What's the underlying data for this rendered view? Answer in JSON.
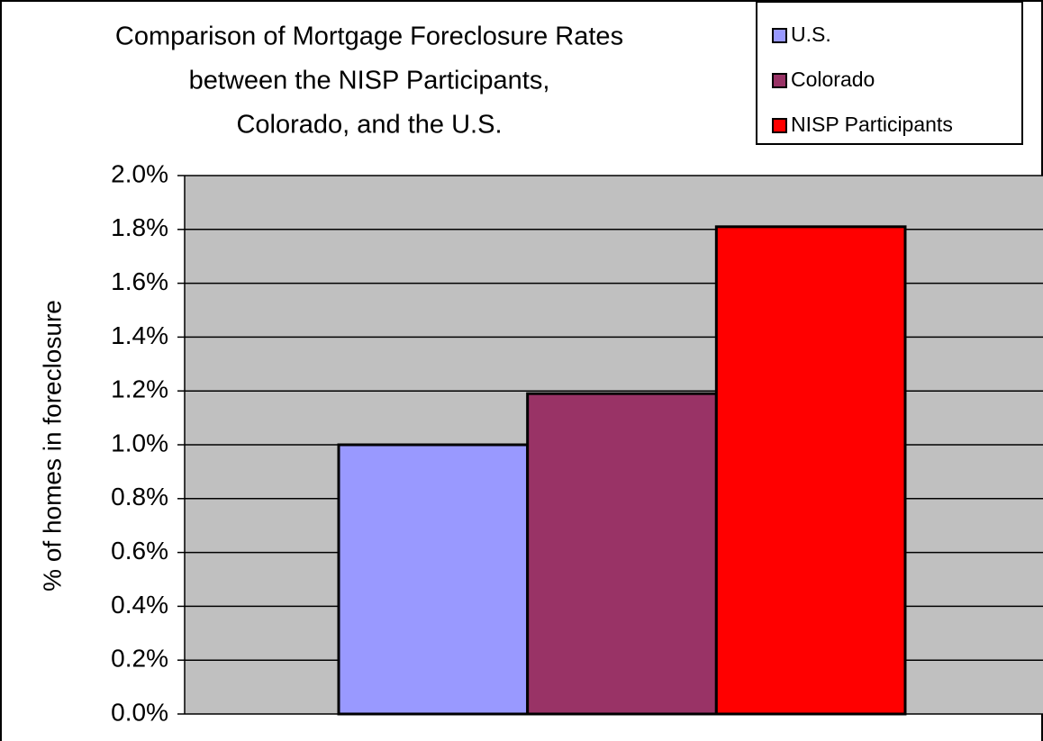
{
  "chart_data": {
    "type": "bar",
    "title": [
      "Comparison of Mortgage Foreclosure Rates",
      "between the NISP Participants,",
      "Colorado, and the U.S."
    ],
    "y_label": "% of homes in foreclosure",
    "categories": [
      null
    ],
    "series": [
      {
        "name": "U.S.",
        "color": "#9999ff",
        "values": [
          1.0
        ]
      },
      {
        "name": "Colorado",
        "color": "#993366",
        "values": [
          1.19
        ]
      },
      {
        "name": "NISP Participants",
        "color": "#ff0000",
        "values": [
          1.81
        ]
      }
    ],
    "ylim": [
      0,
      2.0
    ],
    "yticks": [
      {
        "value": 0,
        "label": "0.0%"
      },
      {
        "value": 0.2,
        "label": "0.2%"
      },
      {
        "value": 0.4,
        "label": "0.4%"
      },
      {
        "value": 0.6,
        "label": "0.6%"
      },
      {
        "value": 0.8,
        "label": "0.8%"
      },
      {
        "value": 1.0,
        "label": "1.0%"
      },
      {
        "value": 1.2,
        "label": "1.2%"
      },
      {
        "value": 1.4,
        "label": "1.4%"
      },
      {
        "value": 1.6,
        "label": "1.6%"
      },
      {
        "value": 1.8,
        "label": "1.8%"
      },
      {
        "value": 2.0,
        "label": "2.0%"
      }
    ],
    "grid": true,
    "plot_background": "#c0c0c0",
    "legend": "top-right"
  }
}
